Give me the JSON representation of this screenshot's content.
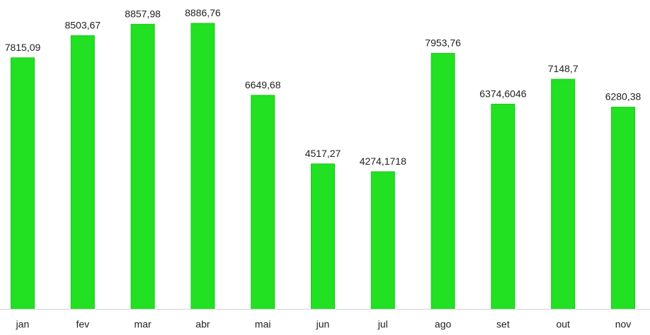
{
  "chart_data": {
    "type": "bar",
    "categories": [
      "jan",
      "fev",
      "mar",
      "abr",
      "mai",
      "jun",
      "jul",
      "ago",
      "set",
      "out",
      "nov"
    ],
    "series": [
      {
        "values": [
          7815.09,
          8503.67,
          8857.98,
          8886.76,
          6649.68,
          4517.27,
          4274.1718,
          7953.76,
          6374.6046,
          7148.7,
          6280.38
        ],
        "labels": [
          "7815,09",
          "8503,67",
          "8857,98",
          "8886,76",
          "6649,68",
          "4517,27",
          "4274,1718",
          "7953,76",
          "6374,6046",
          "7148,7",
          "6280,38"
        ]
      }
    ],
    "title": "",
    "xlabel": "",
    "ylabel": "",
    "ylim": [
      0,
      8886.76
    ],
    "grid": false,
    "legend": false,
    "colors": {
      "bar": "#22e022",
      "bar_edge": "#18c918",
      "text": "#1f1f1f",
      "axis": "#d0d0d0"
    }
  }
}
